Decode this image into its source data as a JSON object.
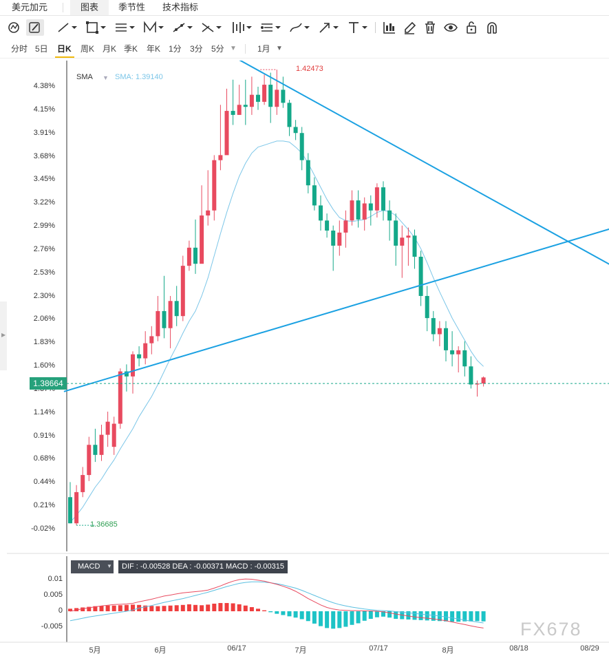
{
  "tabs": [
    {
      "label": "美元加元",
      "active": false
    },
    {
      "label": "图表",
      "active": true
    },
    {
      "label": "季节性",
      "active": false
    },
    {
      "label": "技术指标",
      "active": false
    }
  ],
  "toolbar_icons": [
    "indicator-icon",
    "draw-icon",
    "line-icon",
    "rectangle-icon",
    "channel-icon",
    "pattern-icon",
    "fib-icon",
    "measure-icon",
    "gann-icon",
    "price-range-icon",
    "brush-icon",
    "arrow-icon",
    "text-icon",
    "chart-type-icon",
    "pencil-icon",
    "trash-icon",
    "eye-icon",
    "lock-icon",
    "magnet-icon"
  ],
  "periods": [
    {
      "label": "分时",
      "active": false
    },
    {
      "label": "5日",
      "active": false
    },
    {
      "label": "日K",
      "active": true
    },
    {
      "label": "周K",
      "active": false
    },
    {
      "label": "月K",
      "active": false
    },
    {
      "label": "季K",
      "active": false
    },
    {
      "label": "年K",
      "active": false
    },
    {
      "label": "1分",
      "active": false
    },
    {
      "label": "3分",
      "active": false
    },
    {
      "label": "5分",
      "active": false
    },
    {
      "label": "1月",
      "active": false
    }
  ],
  "sma": {
    "label": "SMA",
    "value_text": "SMA: 1.39140"
  },
  "current_price": "1.38664",
  "high_label": "1.42473",
  "low_label": "1.36685",
  "macd": {
    "label": "MACD",
    "values_text": "DIF : -0.00528  DEA : -0.00371  MACD : -0.00315"
  },
  "watermark": "FX678",
  "colors": {
    "up": "#e84a5f",
    "down": "#14a889",
    "sma": "#7cc6e8",
    "trendline": "#1ba1e2",
    "dif": "#e84a5f",
    "dea": "#5bbfe0",
    "hist_pos": "#ef3e3e",
    "hist_neg": "#1dc3c6"
  },
  "chart_data": {
    "type": "candlestick",
    "y_ticks": [
      "4.38%",
      "4.15%",
      "3.91%",
      "3.68%",
      "3.45%",
      "3.22%",
      "2.99%",
      "2.76%",
      "2.53%",
      "2.30%",
      "2.06%",
      "1.83%",
      "1.60%",
      "1.37%",
      "1.14%",
      "0.91%",
      "0.68%",
      "0.44%",
      "0.21%",
      "-0.02%"
    ],
    "x_ticks": [
      "5月",
      "6月",
      "06/17",
      "7月",
      "07/17",
      "8月",
      "08/18",
      "08/29"
    ],
    "ylim_pct": [
      -0.02,
      4.38
    ],
    "current_pct": 1.43,
    "sma_period_note": "",
    "candles_pct": [
      [
        0.3,
        0.04,
        0.45,
        0.04
      ],
      [
        0.04,
        0.35,
        0.42,
        0.02
      ],
      [
        0.35,
        0.52,
        0.6,
        0.3
      ],
      [
        0.52,
        0.82,
        0.9,
        0.46
      ],
      [
        0.82,
        0.72,
        0.98,
        0.65
      ],
      [
        0.72,
        0.92,
        1.02,
        0.66
      ],
      [
        0.92,
        1.05,
        1.15,
        0.8
      ],
      [
        0.8,
        1.03,
        1.1,
        0.72
      ],
      [
        1.03,
        1.55,
        1.58,
        0.98
      ],
      [
        1.55,
        1.5,
        1.62,
        1.35
      ],
      [
        1.5,
        1.72,
        1.75,
        1.33
      ],
      [
        1.72,
        1.68,
        1.8,
        1.6
      ],
      [
        1.68,
        1.83,
        1.95,
        1.62
      ],
      [
        1.83,
        1.9,
        2.0,
        1.72
      ],
      [
        1.9,
        2.15,
        2.3,
        1.85
      ],
      [
        2.15,
        1.98,
        2.5,
        1.88
      ],
      [
        1.98,
        2.25,
        2.3,
        1.78
      ],
      [
        2.25,
        2.1,
        2.4,
        2.0
      ],
      [
        2.1,
        2.6,
        2.7,
        2.05
      ],
      [
        2.6,
        2.78,
        2.85,
        2.55
      ],
      [
        2.78,
        2.62,
        3.06,
        2.52
      ],
      [
        2.62,
        3.1,
        3.4,
        3.05
      ],
      [
        3.1,
        3.15,
        3.55,
        3.0
      ],
      [
        3.15,
        3.65,
        3.7,
        3.05
      ],
      [
        3.65,
        3.7,
        4.2,
        3.55
      ],
      [
        3.7,
        4.14,
        4.36,
        4.05
      ],
      [
        4.14,
        4.1,
        4.45,
        4.0
      ],
      [
        4.1,
        4.2,
        4.4,
        4.1
      ],
      [
        4.2,
        4.18,
        4.45,
        4.0
      ],
      [
        4.18,
        4.3,
        4.48,
        4.1
      ],
      [
        4.3,
        4.23,
        4.38,
        4.15
      ],
      [
        4.23,
        4.4,
        4.5,
        4.2
      ],
      [
        4.4,
        4.18,
        4.52,
        4.02
      ],
      [
        4.18,
        4.35,
        4.55,
        4.1
      ],
      [
        4.35,
        4.22,
        4.48,
        4.17
      ],
      [
        4.22,
        3.98,
        4.25,
        3.89
      ],
      [
        3.98,
        3.92,
        4.05,
        3.85
      ],
      [
        3.92,
        3.65,
        3.98,
        3.55
      ],
      [
        3.65,
        3.4,
        3.72,
        3.32
      ],
      [
        3.4,
        3.2,
        3.48,
        3.15
      ],
      [
        3.2,
        3.05,
        3.3,
        2.95
      ],
      [
        3.05,
        2.95,
        3.12,
        2.88
      ],
      [
        2.95,
        2.8,
        3.0,
        2.55
      ],
      [
        2.8,
        2.93,
        3.05,
        2.7
      ],
      [
        2.93,
        3.05,
        3.15,
        2.78
      ],
      [
        3.05,
        3.25,
        3.35,
        3.0
      ],
      [
        3.25,
        3.06,
        3.35,
        2.98
      ],
      [
        3.06,
        3.22,
        3.28,
        2.95
      ],
      [
        3.22,
        3.15,
        3.3,
        3.0
      ],
      [
        3.15,
        3.38,
        3.42,
        3.08
      ],
      [
        3.38,
        3.15,
        3.44,
        3.05
      ],
      [
        3.15,
        3.05,
        3.25,
        2.85
      ],
      [
        3.05,
        2.8,
        3.12,
        2.6
      ],
      [
        2.8,
        2.88,
        3.0,
        2.48
      ],
      [
        2.88,
        2.9,
        2.98,
        2.6
      ],
      [
        2.9,
        2.69,
        2.96,
        2.57
      ],
      [
        2.69,
        2.3,
        2.75,
        2.2
      ],
      [
        2.3,
        2.08,
        2.4,
        1.95
      ],
      [
        2.08,
        1.92,
        2.15,
        1.85
      ],
      [
        1.92,
        1.98,
        2.05,
        1.8
      ],
      [
        1.98,
        1.76,
        2.05,
        1.65
      ],
      [
        1.76,
        1.72,
        1.95,
        1.6
      ],
      [
        1.72,
        1.76,
        1.8,
        1.54
      ],
      [
        1.76,
        1.6,
        1.85,
        1.5
      ],
      [
        1.6,
        1.42,
        1.7,
        1.38
      ],
      [
        1.42,
        1.43,
        1.46,
        1.3
      ],
      [
        1.43,
        1.49,
        1.5,
        1.4
      ]
    ],
    "sma_pct": [
      0.05,
      0.12,
      0.2,
      0.3,
      0.4,
      0.48,
      0.58,
      0.67,
      0.78,
      0.88,
      0.98,
      1.1,
      1.2,
      1.3,
      1.42,
      1.55,
      1.68,
      1.8,
      1.93,
      2.05,
      2.15,
      2.3,
      2.48,
      2.7,
      2.92,
      3.13,
      3.32,
      3.49,
      3.62,
      3.72,
      3.78,
      3.8,
      3.82,
      3.84,
      3.84,
      3.83,
      3.78,
      3.72,
      3.62,
      3.5,
      3.38,
      3.26,
      3.16,
      3.08,
      3.05,
      3.04,
      3.05,
      3.06,
      3.09,
      3.13,
      3.15,
      3.14,
      3.1,
      3.03,
      2.96,
      2.88,
      2.77,
      2.63,
      2.48,
      2.34,
      2.21,
      2.08,
      1.97,
      1.86,
      1.75,
      1.66,
      1.6
    ],
    "trendlines": [
      {
        "from": {
          "candle": -1,
          "pct": 1.35
        },
        "to": {
          "candle": 88,
          "pct": 3.0
        }
      },
      {
        "from": {
          "candle": 24,
          "pct": 4.75
        },
        "to": {
          "candle": 88,
          "pct": 2.55
        }
      }
    ],
    "macd": {
      "y_ticks": [
        "0.01",
        "0.005",
        "0",
        "-0.005"
      ],
      "ylim": [
        -0.0065,
        0.012
      ],
      "hist": [
        0.0008,
        0.001,
        0.0012,
        0.0014,
        0.0016,
        0.0017,
        0.0018,
        0.0018,
        0.0019,
        0.002,
        0.0021,
        0.002,
        0.0018,
        0.0017,
        0.0016,
        0.0017,
        0.0018,
        0.0019,
        0.002,
        0.0022,
        0.002,
        0.0019,
        0.0021,
        0.0024,
        0.0026,
        0.0026,
        0.0025,
        0.0022,
        0.0018,
        0.0013,
        0.0008,
        0.0003,
        -0.0003,
        -0.0008,
        -0.0012,
        -0.0016,
        -0.002,
        -0.0025,
        -0.0031,
        -0.0039,
        -0.0047,
        -0.0053,
        -0.0055,
        -0.0053,
        -0.0049,
        -0.0043,
        -0.0038,
        -0.003,
        -0.0024,
        -0.0019,
        -0.0017,
        -0.002,
        -0.0024,
        -0.0025,
        -0.0026,
        -0.0027,
        -0.0028,
        -0.0029,
        -0.003,
        -0.0031,
        -0.0032,
        -0.0033,
        -0.0033,
        -0.0032,
        -0.0032,
        -0.0031,
        -0.0032
      ],
      "dif": [
        0.0,
        0.0004,
        0.0008,
        0.0011,
        0.0014,
        0.0017,
        0.0019,
        0.0021,
        0.0022,
        0.0023,
        0.0025,
        0.003,
        0.0034,
        0.0038,
        0.0043,
        0.0048,
        0.0051,
        0.0055,
        0.0058,
        0.006,
        0.0062,
        0.0064,
        0.0067,
        0.0073,
        0.008,
        0.0088,
        0.0095,
        0.01,
        0.0102,
        0.0101,
        0.0098,
        0.0095,
        0.009,
        0.0085,
        0.0079,
        0.0072,
        0.0063,
        0.0052,
        0.004,
        0.003,
        0.002,
        0.0012,
        0.0007,
        0.0004,
        0.0003,
        0.0002,
        0.0002,
        0.0001,
        0.0001,
        0.0,
        -0.0002,
        -0.0005,
        -0.0009,
        -0.0012,
        -0.0015,
        -0.0018,
        -0.002,
        -0.0022,
        -0.0024,
        -0.0027,
        -0.003,
        -0.0034,
        -0.0038,
        -0.0042,
        -0.0046,
        -0.005,
        -0.0053
      ],
      "dea": [
        -0.003,
        -0.0026,
        -0.0022,
        -0.0018,
        -0.0015,
        -0.0012,
        -0.0009,
        -0.0006,
        -0.0003,
        0.0,
        0.0004,
        0.001,
        0.0014,
        0.0018,
        0.0023,
        0.0028,
        0.0032,
        0.0036,
        0.004,
        0.0045,
        0.005,
        0.0055,
        0.006,
        0.0066,
        0.0072,
        0.0078,
        0.0083,
        0.0088,
        0.0091,
        0.0093,
        0.0093,
        0.0092,
        0.009,
        0.0087,
        0.0083,
        0.0078,
        0.0073,
        0.0066,
        0.0058,
        0.005,
        0.0042,
        0.0034,
        0.0027,
        0.0021,
        0.0017,
        0.0013,
        0.001,
        0.0007,
        0.0005,
        0.0003,
        0.0002,
        0.0001,
        -0.0001,
        -0.0003,
        -0.0005,
        -0.0007,
        -0.0009,
        -0.0011,
        -0.0013,
        -0.0015,
        -0.0018,
        -0.0021,
        -0.0024,
        -0.0028,
        -0.0031,
        -0.0034,
        -0.0037
      ]
    }
  }
}
